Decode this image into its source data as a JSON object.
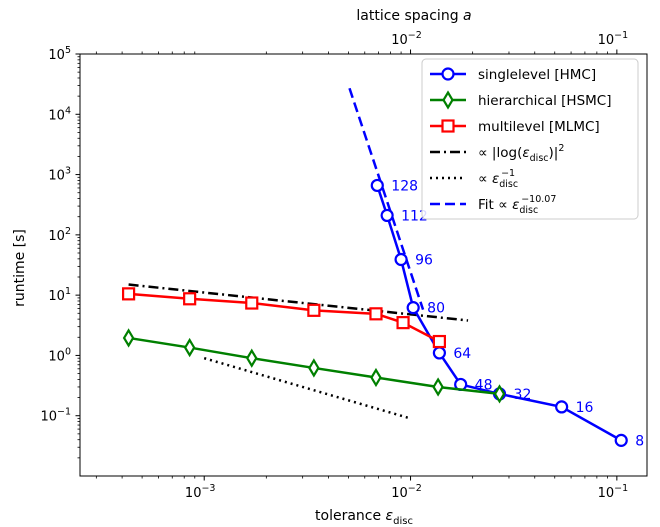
{
  "chart_data": {
    "type": "line",
    "xscale": "log",
    "yscale": "log",
    "xlim": [
      0.00025,
      0.14
    ],
    "ylim": [
      0.01,
      100000
    ],
    "xlabel_main": "tolerance ",
    "xlabel_sym": "ε",
    "xlabel_sub": "disc",
    "ylabel": "runtime [s]",
    "top_axis": {
      "label_main": "lattice spacing ",
      "label_sym": "a",
      "ticks": [
        {
          "value": 0.01,
          "base": "10",
          "exp": "−2"
        },
        {
          "value": 0.1,
          "base": "10",
          "exp": "−1"
        }
      ]
    },
    "x_ticks": [
      {
        "value": 0.001,
        "base": "10",
        "exp": "−3"
      },
      {
        "value": 0.01,
        "base": "10",
        "exp": "−2"
      },
      {
        "value": 0.1,
        "base": "10",
        "exp": "−1"
      }
    ],
    "y_ticks": [
      {
        "value": 0.1,
        "base": "10",
        "exp": "−1"
      },
      {
        "value": 1,
        "base": "10",
        "exp": "0"
      },
      {
        "value": 10,
        "base": "10",
        "exp": "1"
      },
      {
        "value": 100,
        "base": "10",
        "exp": "2"
      },
      {
        "value": 1000,
        "base": "10",
        "exp": "3"
      },
      {
        "value": 10000,
        "base": "10",
        "exp": "4"
      },
      {
        "value": 100000,
        "base": "10",
        "exp": "5"
      }
    ],
    "series": [
      {
        "name": "singlelevel [HMC]",
        "color": "#0000ff",
        "marker": "circle",
        "x": [
          0.105,
          0.054,
          0.027,
          0.0175,
          0.0138,
          0.0103,
          0.009,
          0.0077,
          0.0069
        ],
        "y": [
          0.039,
          0.14,
          0.23,
          0.33,
          1.1,
          6.2,
          39,
          210,
          660
        ],
        "point_labels": [
          "8",
          "16",
          "32",
          "48",
          "64",
          "80",
          "96",
          "112",
          "128"
        ]
      },
      {
        "name": "hierarchical [HSMC]",
        "color": "#008000",
        "marker": "diamond",
        "x": [
          0.00043,
          0.00085,
          0.0017,
          0.0034,
          0.0068,
          0.0136,
          0.027
        ],
        "y": [
          1.95,
          1.35,
          0.9,
          0.62,
          0.43,
          0.3,
          0.23
        ]
      },
      {
        "name": "multilevel [MLMC]",
        "color": "#ff0000",
        "marker": "square",
        "x": [
          0.00043,
          0.00085,
          0.0017,
          0.0034,
          0.0068,
          0.0092,
          0.0138
        ],
        "y": [
          10.5,
          8.7,
          7.4,
          5.6,
          4.9,
          3.5,
          1.7
        ]
      }
    ],
    "reference_lines": [
      {
        "name": "∝ |log(ε_disc)|^2",
        "style": "dashdot",
        "color": "#000000",
        "x": [
          0.00043,
          0.019
        ],
        "y": [
          15,
          3.8
        ]
      },
      {
        "name": "∝ ε_disc^−1",
        "style": "dotted",
        "color": "#000000",
        "x": [
          0.001,
          0.01
        ],
        "y": [
          0.9,
          0.09
        ]
      },
      {
        "name": "Fit ∝ ε_disc^−10.07",
        "style": "dashed",
        "color": "#0000ff",
        "x": [
          0.00506,
          0.0115
        ],
        "y": [
          27000,
          5.75
        ]
      }
    ],
    "legend": {
      "position": "top-right",
      "entries": [
        {
          "series": "singlelevel [HMC]",
          "text": "singlelevel [HMC]"
        },
        {
          "series": "hierarchical [HSMC]",
          "text": "hierarchical [HSMC]"
        },
        {
          "series": "multilevel [MLMC]",
          "text": "multilevel [MLMC]"
        },
        {
          "ref": 0,
          "pre": "∝ |log(",
          "sym": "ε",
          "sub": "disc",
          "post": ")|",
          "sup": "2"
        },
        {
          "ref": 1,
          "pre": "∝ ",
          "sym": "ε",
          "sub": "disc",
          "post": "",
          "sup": "−1"
        },
        {
          "ref": 2,
          "pre": "Fit  ∝ ",
          "sym": "ε",
          "sub": "disc",
          "post": "",
          "sup": "−10.07"
        }
      ]
    }
  }
}
